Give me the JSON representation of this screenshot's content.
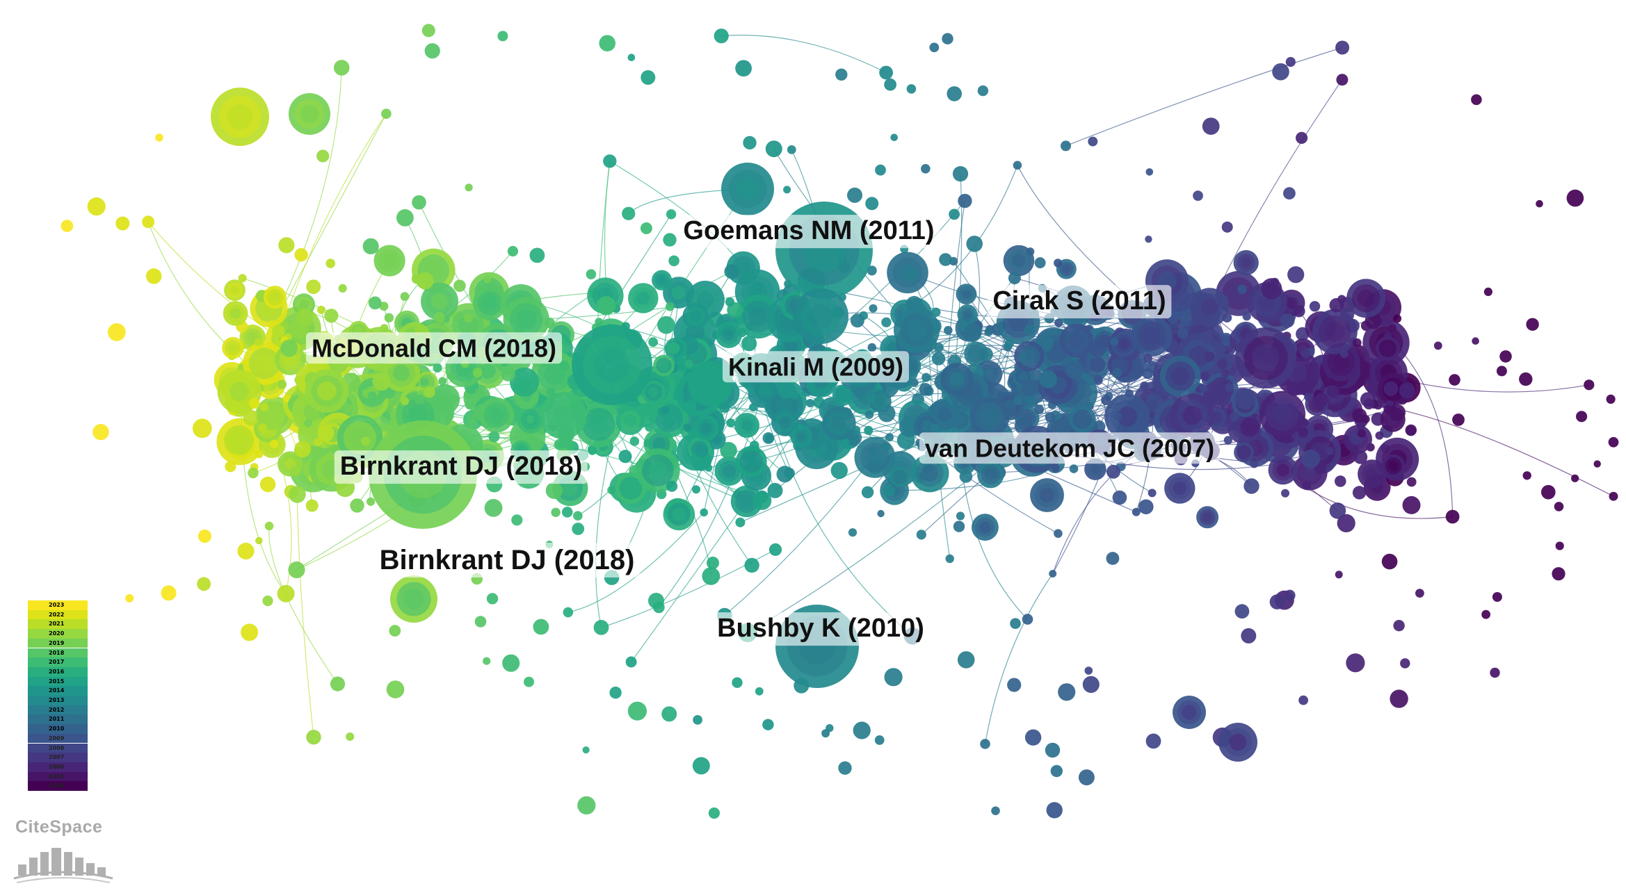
{
  "labels": [
    {
      "id": "goemans",
      "text": "Goemans NM (2011)"
    },
    {
      "id": "cirak",
      "text": "Cirak S (2011)"
    },
    {
      "id": "mcdonald",
      "text": "McDonald CM (2018)"
    },
    {
      "id": "kinali",
      "text": "Kinali M (2009)"
    },
    {
      "id": "vandeutekom",
      "text": "van Deutekom JC (2007)"
    },
    {
      "id": "birnkrant1",
      "text": "Birnkrant DJ (2018)"
    },
    {
      "id": "birnkrant2",
      "text": "Birnkrant DJ (2018)"
    },
    {
      "id": "bushby",
      "text": "Bushby K (2010)"
    }
  ],
  "legend": {
    "years": [
      "2023",
      "2022",
      "2021",
      "2020",
      "2019",
      "2018",
      "2017",
      "2016",
      "2015",
      "2014",
      "2013",
      "2012",
      "2011",
      "2010",
      "2009",
      "2008",
      "2007",
      "2006",
      "2005",
      "2004"
    ],
    "colors": [
      "#f8e621",
      "#dde318",
      "#bade28",
      "#95d840",
      "#75d054",
      "#56c667",
      "#3dbc74",
      "#29af7f",
      "#20a386",
      "#1f968b",
      "#238a8d",
      "#287d8e",
      "#2d718e",
      "#33638d",
      "#39558c",
      "#404688",
      "#453781",
      "#482576",
      "#481467",
      "#440154"
    ]
  },
  "logo": {
    "text": "CiteSpace"
  }
}
